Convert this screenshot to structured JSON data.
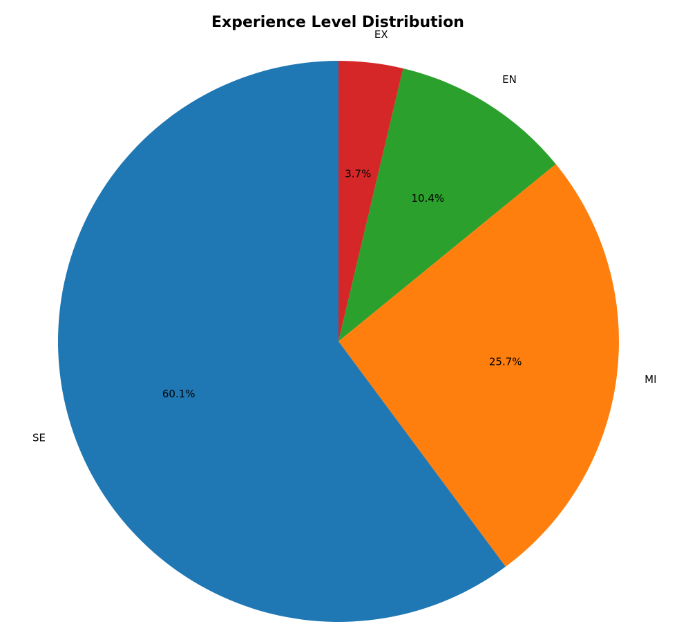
{
  "chart_data": {
    "type": "pie",
    "title": "Experience Level Distribution",
    "start_angle_deg": 90,
    "direction": "clockwise",
    "slices": [
      {
        "label": "EX",
        "percent": 3.7,
        "value_label": "3.7%",
        "color": "#d62728"
      },
      {
        "label": "EN",
        "percent": 10.4,
        "value_label": "10.4%",
        "color": "#2ca02c"
      },
      {
        "label": "MI",
        "percent": 25.7,
        "value_label": "25.7%",
        "color": "#ff7f0e"
      },
      {
        "label": "SE",
        "percent": 60.1,
        "value_label": "60.1%",
        "color": "#1f77b4"
      }
    ]
  }
}
